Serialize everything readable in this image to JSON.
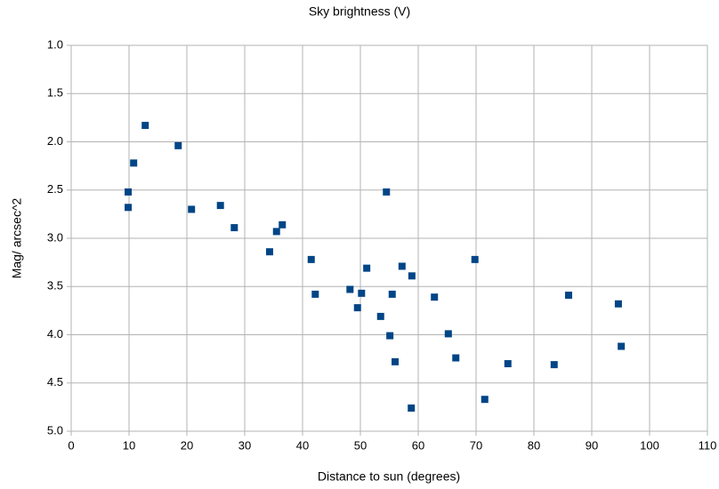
{
  "chart_data": {
    "type": "scatter",
    "title": "Sky brightness (V)",
    "x_label": "Distance to sun (degrees)",
    "y_label": "Mag/ arcsec^2",
    "xlim": [
      0,
      110
    ],
    "xticks": [
      0,
      10,
      20,
      30,
      40,
      50,
      60,
      70,
      80,
      90,
      100,
      110
    ],
    "ylim": [
      1,
      5
    ],
    "y_inverted": true,
    "yticks": [
      {
        "value": 1,
        "label": "1.0"
      },
      {
        "value": 1.5,
        "label": "1.5"
      },
      {
        "value": 2,
        "label": "2.0"
      },
      {
        "value": 2.5,
        "label": "2.5"
      },
      {
        "value": 3,
        "label": "3.0"
      },
      {
        "value": 3.5,
        "label": "3.5"
      },
      {
        "value": 4,
        "label": "4.0"
      },
      {
        "value": 4.5,
        "label": "4.5"
      },
      {
        "value": 5,
        "label": "5.0"
      }
    ],
    "grid": true,
    "series": [
      {
        "name": "V",
        "color": "#004586",
        "x": [
          9.85,
          9.85,
          10.8,
          12.8,
          18.5,
          20.8,
          25.8,
          28.2,
          34.3,
          35.5,
          36.5,
          41.5,
          42.2,
          48.2,
          49.5,
          50.2,
          51.1,
          53.5,
          54.5,
          55.1,
          55.5,
          56.0,
          57.2,
          58.9,
          58.8,
          62.8,
          65.2,
          66.5,
          69.8,
          71.5,
          75.5,
          83.5,
          86.0,
          94.6,
          95.1
        ],
        "values": [
          2.52,
          2.68,
          2.22,
          1.83,
          2.04,
          2.7,
          2.66,
          2.89,
          3.14,
          2.93,
          2.86,
          3.22,
          3.58,
          3.53,
          3.72,
          3.57,
          3.31,
          3.81,
          2.52,
          4.01,
          3.58,
          4.28,
          3.29,
          3.39,
          4.76,
          3.61,
          3.99,
          4.24,
          3.22,
          4.67,
          4.3,
          4.31,
          3.59,
          3.68,
          4.12
        ]
      }
    ]
  }
}
